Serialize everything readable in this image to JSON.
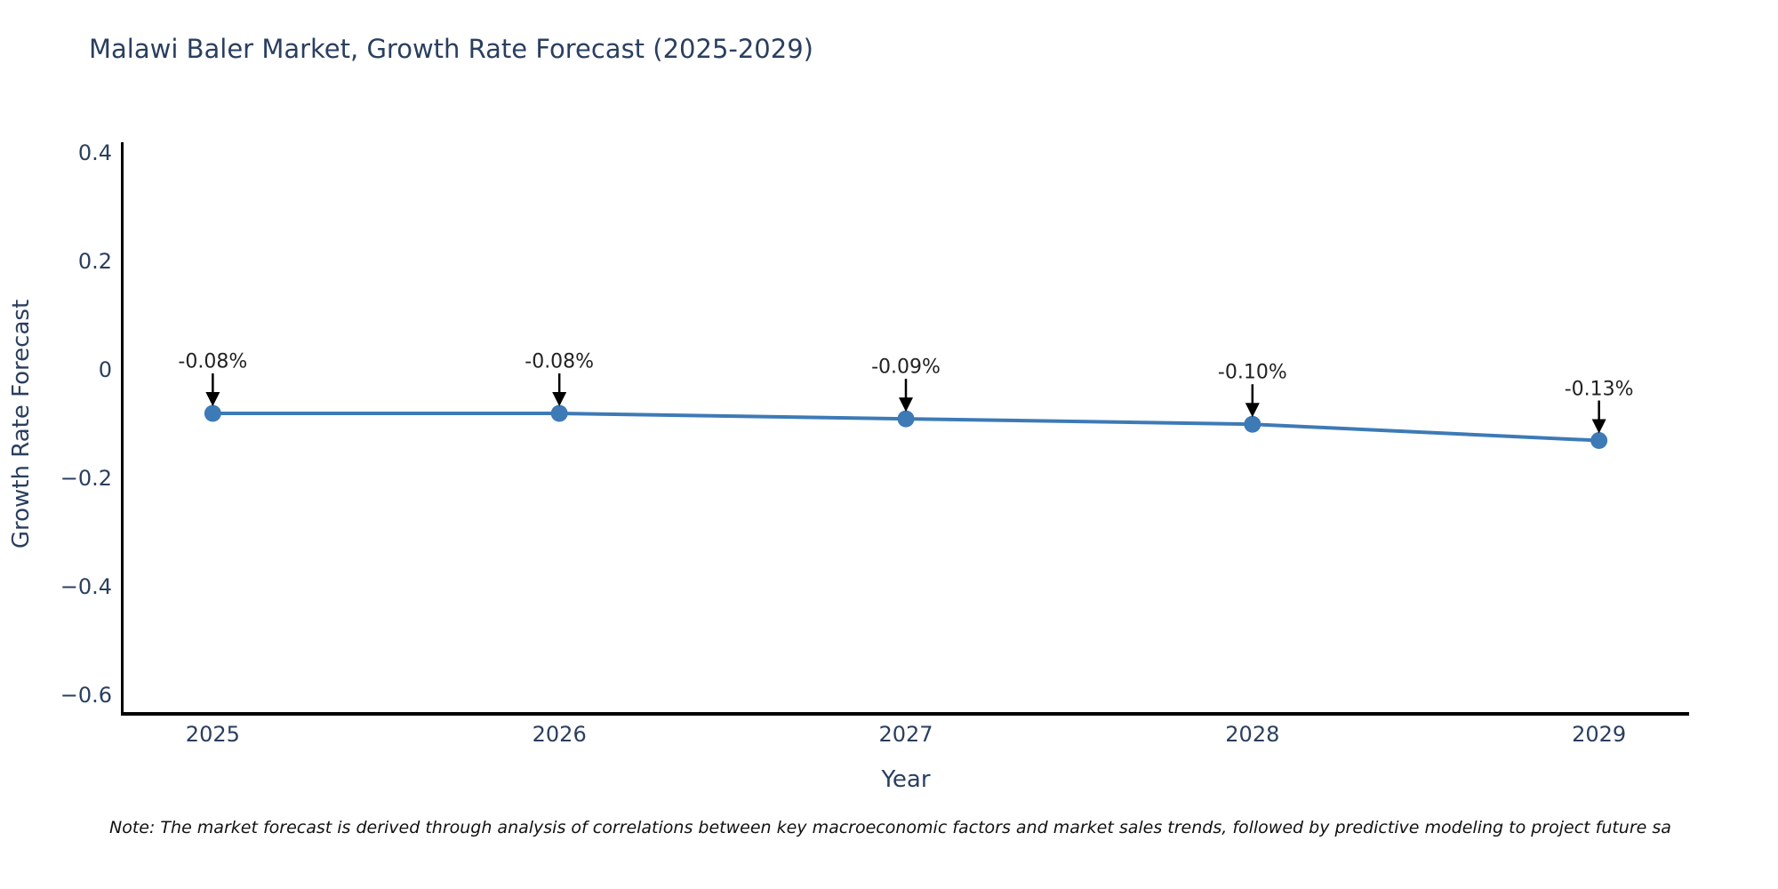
{
  "chart_data": {
    "type": "line",
    "title": "Malawi Baler Market, Growth Rate Forecast (2025-2029)",
    "xlabel": "Year",
    "ylabel": "Growth Rate Forecast",
    "x": [
      2025,
      2026,
      2027,
      2028,
      2029
    ],
    "y": [
      -0.08,
      -0.08,
      -0.09,
      -0.1,
      -0.13
    ],
    "point_labels": [
      "-0.08%",
      "-0.08%",
      "-0.09%",
      "-0.10%",
      "-0.13%"
    ],
    "x_ticks": {
      "values": [
        2025,
        2026,
        2027,
        2028,
        2029
      ],
      "labels": [
        "2025",
        "2026",
        "2027",
        "2028",
        "2029"
      ]
    },
    "y_ticks": {
      "values": [
        0.4,
        0.2,
        0,
        -0.2,
        -0.4,
        -0.6
      ],
      "labels": [
        "0.4",
        "0.2",
        "0",
        "−0.2",
        "−0.4",
        "−0.6"
      ]
    },
    "xlim": [
      2024.74,
      2029.26
    ],
    "ylim": [
      -0.634,
      0.42
    ],
    "grid": false,
    "legend": "none",
    "line_color": "#3d7ab6",
    "marker_color": "#3d7ab6",
    "arrow_color": "#000000",
    "axis_color": "#000000",
    "text_color": "#2a3f5f"
  },
  "footnote": "Note: The market forecast is derived through analysis of correlations between key macroeconomic factors and market sales trends, followed by predictive modeling to project future sa"
}
